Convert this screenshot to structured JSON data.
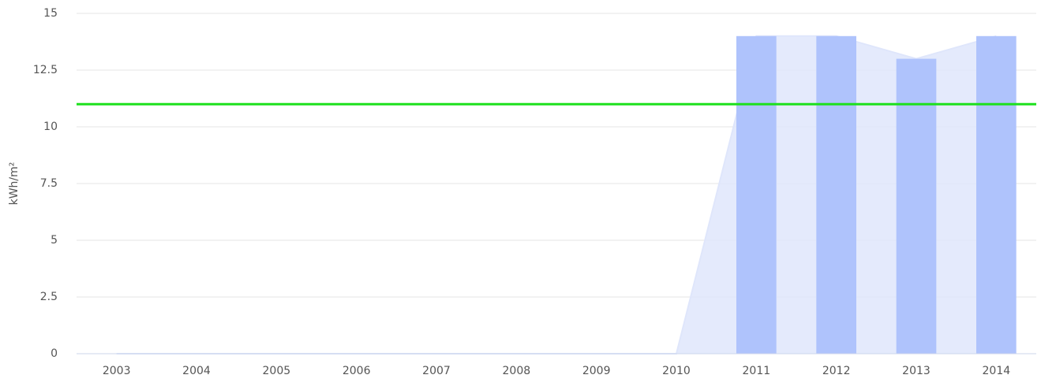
{
  "chart_data": {
    "type": "bar",
    "y_axis_label": "kWh/m²",
    "categories": [
      "2003",
      "2004",
      "2005",
      "2006",
      "2007",
      "2008",
      "2009",
      "2010",
      "2011",
      "2012",
      "2013",
      "2014"
    ],
    "series": [
      {
        "type": "area",
        "color": "#dfe6fb",
        "values": [
          0,
          0,
          0,
          0,
          0,
          0,
          0,
          0,
          14,
          14,
          13,
          14
        ]
      },
      {
        "type": "bar",
        "color": "#afc3fc",
        "values": [
          0,
          0,
          0,
          0,
          0,
          0,
          0,
          0,
          14,
          14,
          13,
          14
        ]
      }
    ],
    "threshold": {
      "value": 11,
      "color": "#1de01d"
    },
    "ylim": [
      0,
      15
    ],
    "yticks": [
      0,
      2.5,
      5,
      7.5,
      10,
      12.5,
      15
    ],
    "grid": true
  }
}
